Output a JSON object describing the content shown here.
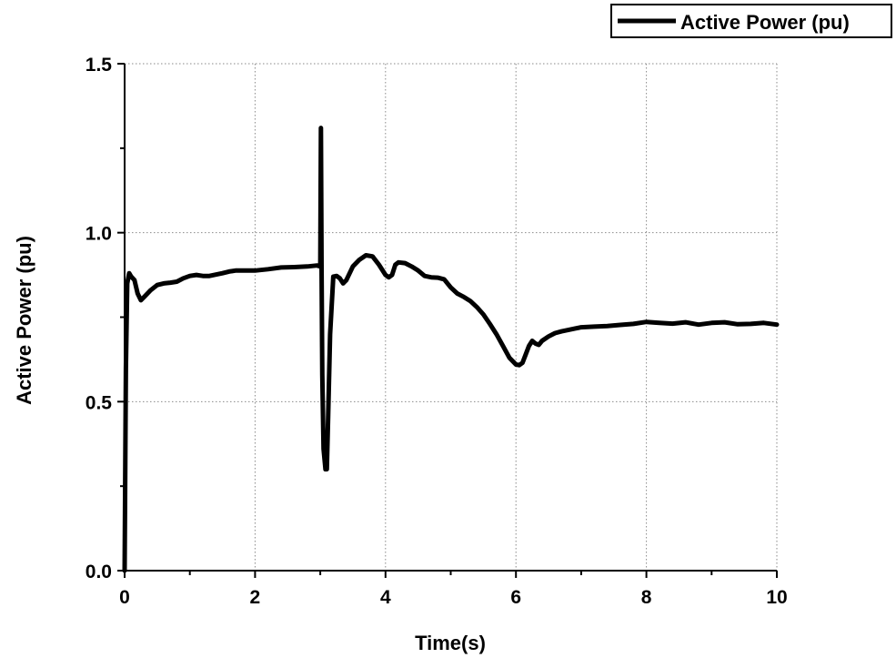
{
  "chart_data": {
    "type": "line",
    "xlabel": "Time(s)",
    "ylabel": "Active Power (pu)",
    "xlim": [
      0,
      10
    ],
    "ylim": [
      0,
      1.5
    ],
    "x_ticks": [
      0,
      2,
      4,
      6,
      8,
      10
    ],
    "y_ticks": [
      0.0,
      0.5,
      1.0,
      1.5
    ],
    "x_tick_labels": [
      "0",
      "2",
      "4",
      "6",
      "8",
      "10"
    ],
    "y_tick_labels": [
      "0.0",
      "0.5",
      "1.0",
      "1.5"
    ],
    "grid": true,
    "legend_position": "top-right",
    "series": [
      {
        "name": "Active Power (pu)",
        "color": "#000000",
        "x": [
          0,
          0.02,
          0.04,
          0.07,
          0.1,
          0.15,
          0.2,
          0.25,
          0.3,
          0.4,
          0.5,
          0.6,
          0.7,
          0.8,
          0.9,
          1.0,
          1.1,
          1.2,
          1.3,
          1.4,
          1.5,
          1.6,
          1.7,
          1.8,
          2.0,
          2.2,
          2.4,
          2.6,
          2.8,
          2.95,
          3.0,
          3.01,
          3.02,
          3.03,
          3.05,
          3.08,
          3.1,
          3.12,
          3.15,
          3.2,
          3.25,
          3.3,
          3.35,
          3.4,
          3.5,
          3.6,
          3.7,
          3.8,
          3.9,
          4.0,
          4.05,
          4.1,
          4.15,
          4.2,
          4.3,
          4.4,
          4.5,
          4.6,
          4.7,
          4.8,
          4.9,
          5.0,
          5.1,
          5.2,
          5.3,
          5.4,
          5.5,
          5.6,
          5.7,
          5.8,
          5.9,
          6.0,
          6.05,
          6.1,
          6.15,
          6.2,
          6.25,
          6.3,
          6.35,
          6.4,
          6.5,
          6.6,
          6.7,
          6.8,
          6.9,
          7.0,
          7.2,
          7.4,
          7.6,
          7.8,
          8.0,
          8.2,
          8.4,
          8.6,
          8.8,
          9.0,
          9.2,
          9.4,
          9.6,
          9.8,
          10.0
        ],
        "y": [
          0.0,
          0.6,
          0.85,
          0.88,
          0.87,
          0.86,
          0.82,
          0.8,
          0.81,
          0.83,
          0.845,
          0.85,
          0.852,
          0.855,
          0.865,
          0.872,
          0.875,
          0.872,
          0.872,
          0.876,
          0.88,
          0.885,
          0.888,
          0.888,
          0.888,
          0.892,
          0.897,
          0.898,
          0.9,
          0.903,
          0.9,
          1.31,
          0.9,
          0.58,
          0.36,
          0.3,
          0.3,
          0.45,
          0.7,
          0.87,
          0.872,
          0.865,
          0.85,
          0.86,
          0.9,
          0.92,
          0.933,
          0.93,
          0.905,
          0.875,
          0.868,
          0.875,
          0.905,
          0.912,
          0.91,
          0.9,
          0.888,
          0.872,
          0.868,
          0.867,
          0.862,
          0.838,
          0.82,
          0.81,
          0.798,
          0.78,
          0.758,
          0.73,
          0.7,
          0.665,
          0.63,
          0.61,
          0.608,
          0.615,
          0.64,
          0.665,
          0.68,
          0.672,
          0.668,
          0.68,
          0.693,
          0.703,
          0.708,
          0.712,
          0.716,
          0.72,
          0.722,
          0.724,
          0.727,
          0.73,
          0.736,
          0.733,
          0.731,
          0.735,
          0.728,
          0.733,
          0.735,
          0.729,
          0.73,
          0.733,
          0.728
        ]
      }
    ]
  }
}
